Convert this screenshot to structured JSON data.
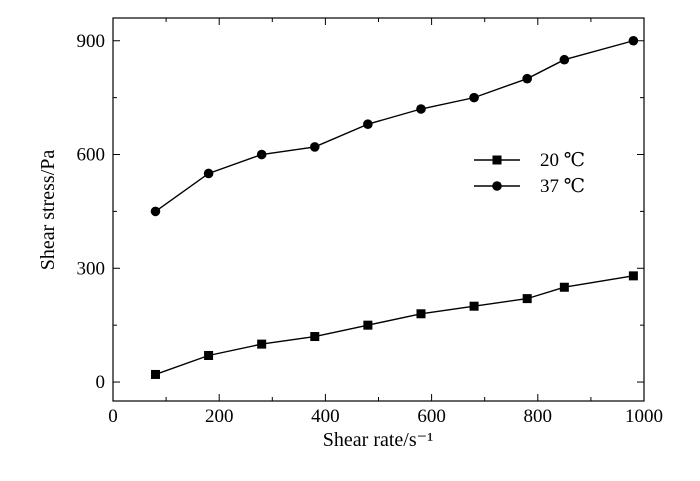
{
  "chart_data": {
    "type": "line",
    "title": "",
    "xlabel": "Shear rate/s⁻¹",
    "ylabel": "Shear stress/Pa",
    "xlim": [
      0,
      1000
    ],
    "ylim": [
      -50,
      960
    ],
    "xticks": [
      0,
      200,
      400,
      600,
      800,
      1000
    ],
    "yticks": [
      0,
      300,
      600,
      900
    ],
    "grid": false,
    "legend_position": "right",
    "series": [
      {
        "name": "20 ℃",
        "marker": "square",
        "color": "#000000",
        "x": [
          80,
          180,
          280,
          380,
          480,
          580,
          680,
          780,
          850,
          980
        ],
        "y": [
          20,
          70,
          100,
          120,
          150,
          180,
          200,
          220,
          250,
          280
        ]
      },
      {
        "name": "37 ℃",
        "marker": "circle",
        "color": "#000000",
        "x": [
          80,
          180,
          280,
          380,
          480,
          580,
          680,
          780,
          850,
          980
        ],
        "y": [
          450,
          550,
          600,
          620,
          680,
          720,
          750,
          800,
          850,
          900
        ]
      }
    ]
  }
}
